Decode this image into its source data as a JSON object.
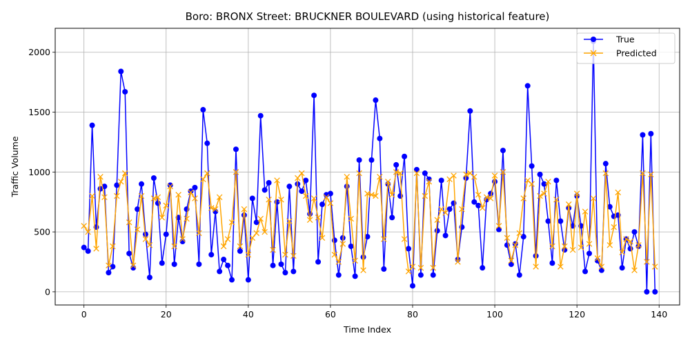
{
  "chart_data": {
    "type": "line",
    "title": "Boro: BRONX Street: BRUCKNER BOULEVARD (using historical feature)",
    "xlabel": "Time Index",
    "ylabel": "Traffic Volume",
    "xlim": [
      -7,
      145
    ],
    "ylim": [
      -110,
      2200
    ],
    "xticks": [
      0,
      20,
      40,
      60,
      80,
      100,
      120,
      140
    ],
    "yticks": [
      0,
      500,
      1000,
      1500,
      2000
    ],
    "grid": true,
    "legend_position": "top-right",
    "series": [
      {
        "name": "True",
        "color": "#0000ff",
        "marker": "circle",
        "values": [
          370,
          340,
          1390,
          540,
          860,
          880,
          160,
          210,
          890,
          1840,
          1670,
          320,
          200,
          690,
          900,
          480,
          120,
          950,
          740,
          240,
          480,
          890,
          230,
          620,
          420,
          690,
          840,
          870,
          230,
          1520,
          1240,
          310,
          670,
          170,
          270,
          220,
          100,
          1190,
          340,
          640,
          100,
          780,
          580,
          1470,
          850,
          910,
          220,
          750,
          230,
          160,
          880,
          170,
          900,
          840,
          930,
          650,
          1640,
          250,
          730,
          810,
          820,
          430,
          140,
          450,
          880,
          380,
          130,
          1100,
          290,
          460,
          1100,
          1600,
          1280,
          190,
          900,
          620,
          1060,
          800,
          1130,
          360,
          50,
          1020,
          140,
          990,
          940,
          140,
          510,
          930,
          470,
          690,
          740,
          270,
          540,
          950,
          1510,
          750,
          720,
          200,
          770,
          820,
          920,
          520,
          1180,
          390,
          230,
          400,
          140,
          460,
          1720,
          1050,
          300,
          980,
          900,
          590,
          240,
          930,
          590,
          350,
          700,
          550,
          800,
          550,
          170,
          320,
          2090,
          260,
          180,
          1070,
          710,
          630,
          640,
          200,
          440,
          360,
          500,
          380,
          1310,
          0,
          1320,
          0
        ]
      },
      {
        "name": "Predicted",
        "color": "#ffa500",
        "marker": "x",
        "values": [
          550,
          500,
          800,
          360,
          960,
          790,
          220,
          380,
          800,
          920,
          990,
          580,
          220,
          520,
          800,
          440,
          390,
          780,
          790,
          620,
          720,
          880,
          380,
          810,
          440,
          610,
          830,
          780,
          490,
          940,
          990,
          700,
          690,
          790,
          380,
          440,
          580,
          1000,
          380,
          690,
          310,
          450,
          490,
          610,
          500,
          770,
          350,
          930,
          770,
          310,
          590,
          300,
          950,
          990,
          800,
          600,
          780,
          620,
          450,
          790,
          740,
          310,
          250,
          400,
          960,
          610,
          260,
          990,
          180,
          820,
          810,
          800,
          960,
          440,
          920,
          810,
          1000,
          990,
          440,
          170,
          210,
          990,
          200,
          800,
          920,
          200,
          600,
          690,
          660,
          940,
          970,
          250,
          690,
          980,
          990,
          960,
          810,
          700,
          790,
          780,
          970,
          550,
          1000,
          450,
          260,
          390,
          490,
          780,
          930,
          900,
          210,
          800,
          820,
          920,
          380,
          770,
          210,
          380,
          730,
          350,
          820,
          370,
          670,
          400,
          780,
          280,
          210,
          990,
          390,
          540,
          830,
          330,
          440,
          420,
          180,
          390,
          990,
          250,
          980,
          210
        ]
      }
    ]
  }
}
